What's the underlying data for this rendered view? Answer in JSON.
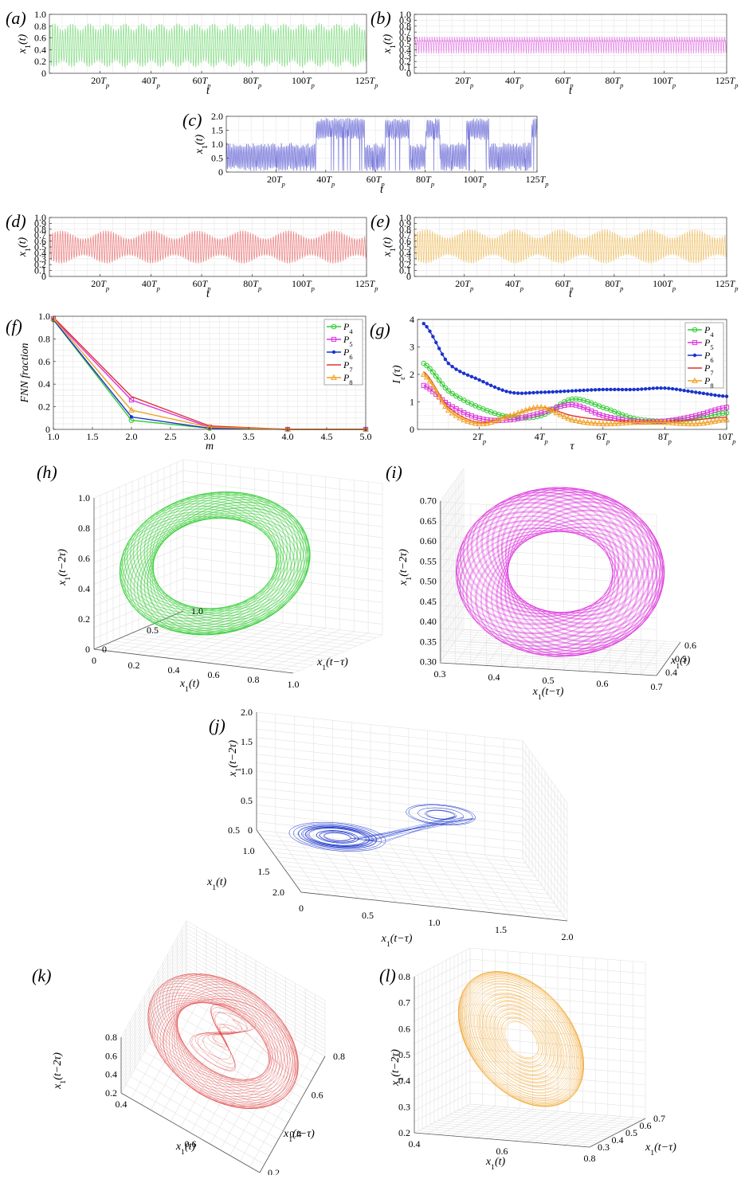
{
  "colors": {
    "P4": "#33cc33",
    "P5": "#dd33dd",
    "P6": "#1a33cc",
    "P7": "#dd3333",
    "P8": "#f0a020",
    "a_light": "#8fe08f",
    "b_light": "#e88ee8",
    "c_light": "#8080dd",
    "d_light": "#ee8a8a",
    "e_light": "#f2c878"
  },
  "chart_data": [
    {
      "id": "a",
      "panel_label": "(a)",
      "type": "line",
      "xlabel": "t",
      "ylabel": "x₁(t)",
      "xlim": [
        0,
        125
      ],
      "ylim": [
        0,
        1.0
      ],
      "xticks": [
        20,
        40,
        60,
        80,
        100,
        125
      ],
      "xtick_labels": [
        "20Tp",
        "40Tp",
        "60Tp",
        "80Tp",
        "100Tp",
        "125Tp"
      ],
      "yticks": [
        0,
        0.2,
        0.4,
        0.6,
        0.8,
        1.0
      ],
      "ytick_labels": [
        "0",
        "0.2",
        "0.4",
        "0.6",
        "0.8",
        "1.0"
      ],
      "series": [
        {
          "color_key": "a_light",
          "envelope_min": 0.1,
          "envelope_max": 0.85
        }
      ]
    },
    {
      "id": "b",
      "panel_label": "(b)",
      "type": "line",
      "xlabel": "t",
      "ylabel": "x₁(t)",
      "xlim": [
        0,
        125
      ],
      "ylim": [
        0,
        1.0
      ],
      "xticks": [
        20,
        40,
        60,
        80,
        100,
        125
      ],
      "xtick_labels": [
        "20Tp",
        "40Tp",
        "60Tp",
        "80Tp",
        "100Tp",
        "125Tp"
      ],
      "yticks": [
        0,
        0.1,
        0.2,
        0.3,
        0.4,
        0.5,
        0.6,
        0.7,
        0.8,
        0.9,
        1.0
      ],
      "ytick_labels": [
        "0",
        "0.1",
        "0.2",
        "0.3",
        "0.4",
        "0.5",
        "0.6",
        "0.7",
        "0.8",
        "0.9",
        "1.0"
      ],
      "series": [
        {
          "color_key": "b_light",
          "envelope_min": 0.33,
          "envelope_max": 0.68
        }
      ]
    },
    {
      "id": "c",
      "panel_label": "(c)",
      "type": "line",
      "xlabel": "t",
      "ylabel": "x₁(t)",
      "xlim": [
        0,
        125
      ],
      "ylim": [
        0,
        2.0
      ],
      "xticks": [
        20,
        40,
        60,
        80,
        100,
        125
      ],
      "xtick_labels": [
        "20Tp",
        "40Tp",
        "60Tp",
        "80Tp",
        "100Tp",
        "125Tp"
      ],
      "yticks": [
        0,
        0.5,
        1.0,
        1.5,
        2.0
      ],
      "ytick_labels": [
        "0",
        "0.5",
        "1.0",
        "1.5",
        "2.0"
      ],
      "series": [
        {
          "color_key": "c_light",
          "envelope_min": 0.0,
          "envelope_max": 2.0
        }
      ]
    },
    {
      "id": "d",
      "panel_label": "(d)",
      "type": "line",
      "xlabel": "t",
      "ylabel": "x₁(t)",
      "xlim": [
        0,
        125
      ],
      "ylim": [
        0,
        1.0
      ],
      "xticks": [
        20,
        40,
        60,
        80,
        100,
        125
      ],
      "xtick_labels": [
        "20Tp",
        "40Tp",
        "60Tp",
        "80Tp",
        "100Tp",
        "125Tp"
      ],
      "yticks": [
        0,
        0.1,
        0.2,
        0.3,
        0.4,
        0.5,
        0.6,
        0.7,
        0.8,
        0.9,
        1.0
      ],
      "ytick_labels": [
        "0",
        "0.1",
        "0.2",
        "0.3",
        "0.4",
        "0.5",
        "0.6",
        "0.7",
        "0.8",
        "0.9",
        "1.0"
      ],
      "series": [
        {
          "color_key": "d_light",
          "envelope_min": 0.22,
          "envelope_max": 0.78
        }
      ]
    },
    {
      "id": "e",
      "panel_label": "(e)",
      "type": "line",
      "xlabel": "t",
      "ylabel": "x₁(t)",
      "xlim": [
        0,
        125
      ],
      "ylim": [
        0,
        1.0
      ],
      "xticks": [
        20,
        40,
        60,
        80,
        100,
        125
      ],
      "xtick_labels": [
        "20Tp",
        "40Tp",
        "60Tp",
        "80Tp",
        "100Tp",
        "125Tp"
      ],
      "yticks": [
        0,
        0.1,
        0.2,
        0.3,
        0.4,
        0.5,
        0.6,
        0.7,
        0.8,
        0.9,
        1.0
      ],
      "ytick_labels": [
        "0",
        "0.1",
        "0.2",
        "0.3",
        "0.4",
        "0.5",
        "0.6",
        "0.7",
        "0.8",
        "0.9",
        "1.0"
      ],
      "series": [
        {
          "color_key": "e_light",
          "envelope_min": 0.22,
          "envelope_max": 0.8
        }
      ]
    },
    {
      "id": "f",
      "panel_label": "(f)",
      "type": "line",
      "xlabel": "m",
      "ylabel": "FNN fraction",
      "xlim": [
        1.0,
        5.0
      ],
      "ylim": [
        0,
        1.0
      ],
      "xticks": [
        1.0,
        1.5,
        2.0,
        2.5,
        3.0,
        3.5,
        4.0,
        4.5,
        5.0
      ],
      "xtick_labels": [
        "1.0",
        "1.5",
        "2.0",
        "2.5",
        "3.0",
        "3.5",
        "4.0",
        "4.5",
        "5.0"
      ],
      "yticks": [
        0,
        0.2,
        0.4,
        0.6,
        0.8,
        1.0
      ],
      "ytick_labels": [
        "0",
        "0.2",
        "0.4",
        "0.6",
        "0.8",
        "1.0"
      ],
      "legend_position": "top-right",
      "x": [
        1,
        2,
        3,
        4,
        5
      ],
      "series": [
        {
          "name": "P4",
          "name_base": "P",
          "name_sub": "4",
          "color_key": "P4",
          "marker": "circle",
          "values": [
            0.97,
            0.08,
            0.01,
            0.0,
            0.0
          ]
        },
        {
          "name": "P5",
          "name_base": "P",
          "name_sub": "5",
          "color_key": "P5",
          "marker": "square",
          "values": [
            0.98,
            0.26,
            0.02,
            0.0,
            0.0
          ]
        },
        {
          "name": "P6",
          "name_base": "P",
          "name_sub": "6",
          "color_key": "P6",
          "marker": "star",
          "values": [
            0.97,
            0.11,
            0.01,
            0.0,
            0.0
          ]
        },
        {
          "name": "P7",
          "name_base": "P",
          "name_sub": "7",
          "color_key": "P7",
          "marker": "none",
          "values": [
            0.99,
            0.29,
            0.03,
            0.0,
            0.0
          ]
        },
        {
          "name": "P8",
          "name_base": "P",
          "name_sub": "8",
          "color_key": "P8",
          "marker": "triangle",
          "values": [
            0.98,
            0.17,
            0.02,
            0.0,
            0.0
          ]
        }
      ]
    },
    {
      "id": "g",
      "panel_label": "(g)",
      "type": "line",
      "xlabel": "τ",
      "ylabel": "I_ε(τ)",
      "xlim": [
        0,
        10
      ],
      "ylim": [
        0,
        4
      ],
      "xticks": [
        2,
        4,
        6,
        8,
        10
      ],
      "xtick_labels": [
        "2Tp",
        "4Tp",
        "6Tp",
        "8Tp",
        "10Tp"
      ],
      "yticks": [
        0,
        1,
        2,
        3,
        4
      ],
      "ytick_labels": [
        "0",
        "1",
        "2",
        "3",
        "4"
      ],
      "legend_position": "top-right",
      "x": [
        0.2,
        1,
        2,
        3,
        4,
        5,
        6,
        7,
        8,
        9,
        10
      ],
      "series": [
        {
          "name": "P4",
          "name_base": "P",
          "name_sub": "4",
          "color_key": "P4",
          "marker": "circle",
          "values": [
            2.4,
            1.4,
            0.8,
            0.45,
            0.5,
            1.1,
            0.8,
            0.4,
            0.3,
            0.4,
            0.6
          ]
        },
        {
          "name": "P5",
          "name_base": "P",
          "name_sub": "5",
          "color_key": "P5",
          "marker": "square",
          "values": [
            1.6,
            0.9,
            0.4,
            0.35,
            0.6,
            0.9,
            0.5,
            0.3,
            0.3,
            0.5,
            0.8
          ]
        },
        {
          "name": "P6",
          "name_base": "P",
          "name_sub": "6",
          "color_key": "P6",
          "marker": "star",
          "values": [
            3.85,
            2.4,
            1.8,
            1.35,
            1.35,
            1.4,
            1.45,
            1.45,
            1.5,
            1.35,
            1.2
          ]
        },
        {
          "name": "P7",
          "name_base": "P",
          "name_sub": "7",
          "color_key": "P7",
          "marker": "none",
          "values": [
            2.1,
            0.8,
            0.25,
            0.5,
            0.8,
            0.5,
            0.35,
            0.3,
            0.3,
            0.35,
            0.45
          ]
        },
        {
          "name": "P8",
          "name_base": "P",
          "name_sub": "8",
          "color_key": "P8",
          "marker": "triangle",
          "values": [
            2.0,
            0.7,
            0.2,
            0.5,
            0.8,
            0.35,
            0.2,
            0.25,
            0.25,
            0.2,
            0.35
          ]
        }
      ]
    },
    {
      "id": "h",
      "panel_label": "(h)",
      "type": "3d-line",
      "xlabel": "x₁(t)",
      "ylabel": "x₁(t−τ)",
      "zlabel": "x₁(t−2τ)",
      "xticks": [
        "0",
        "0.2",
        "0.4",
        "0.6",
        "0.8",
        "1.0"
      ],
      "yticks": [
        "0",
        "0.5",
        "1.0"
      ],
      "zticks": [
        "0",
        "0.2",
        "0.4",
        "0.6",
        "0.8",
        "1.0"
      ],
      "color_key": "P4"
    },
    {
      "id": "i",
      "panel_label": "(i)",
      "type": "3d-line",
      "xlabel": "x₁(t−τ)",
      "ylabel": "x₁(t)",
      "zlabel": "x₁(t−2τ)",
      "xticks": [
        "0.3",
        "0.4",
        "0.5",
        "0.6",
        "0.7"
      ],
      "yticks": [
        "0.4",
        "0.5",
        "0.6"
      ],
      "zticks": [
        "0.30",
        "0.35",
        "0.40",
        "0.45",
        "0.50",
        "0.55",
        "0.60",
        "0.65",
        "0.70"
      ],
      "color_key": "P5"
    },
    {
      "id": "j",
      "panel_label": "(j)",
      "type": "3d-line",
      "xlabel": "x₁(t−τ)",
      "ylabel": "x₁(t)",
      "zlabel": "x₁(t−2τ)",
      "xticks": [
        "0",
        "0.5",
        "1.0",
        "1.5",
        "2.0"
      ],
      "yticks": [
        "0.5",
        "1.0",
        "1.5",
        "2.0"
      ],
      "zticks": [
        "0",
        "0.5",
        "1.0",
        "1.5",
        "2.0"
      ],
      "color_key": "P6"
    },
    {
      "id": "k",
      "panel_label": "(k)",
      "type": "3d-line",
      "xlabel": "x₁(t)",
      "ylabel": "x₁(t−τ)",
      "zlabel": "x₁(t−2τ)",
      "xticks": [
        "0.4",
        "0.6",
        "0.8"
      ],
      "yticks": [
        "0.2",
        "0.4",
        "0.6",
        "0.8"
      ],
      "zticks": [
        "0.2",
        "0.4",
        "0.6",
        "0.8"
      ],
      "color_key": "P7"
    },
    {
      "id": "l",
      "panel_label": "(l)",
      "type": "3d-line",
      "xlabel": "x₁(t)",
      "ylabel": "x₁(t−τ)",
      "zlabel": "x₁(t−2τ)",
      "xticks": [
        "0.4",
        "0.6",
        "0.8"
      ],
      "yticks": [
        "0.3",
        "0.4",
        "0.5",
        "0.6",
        "0.7"
      ],
      "zticks": [
        "0.2",
        "0.3",
        "0.4",
        "0.5",
        "0.6",
        "0.7",
        "0.8"
      ],
      "color_key": "P8"
    }
  ]
}
